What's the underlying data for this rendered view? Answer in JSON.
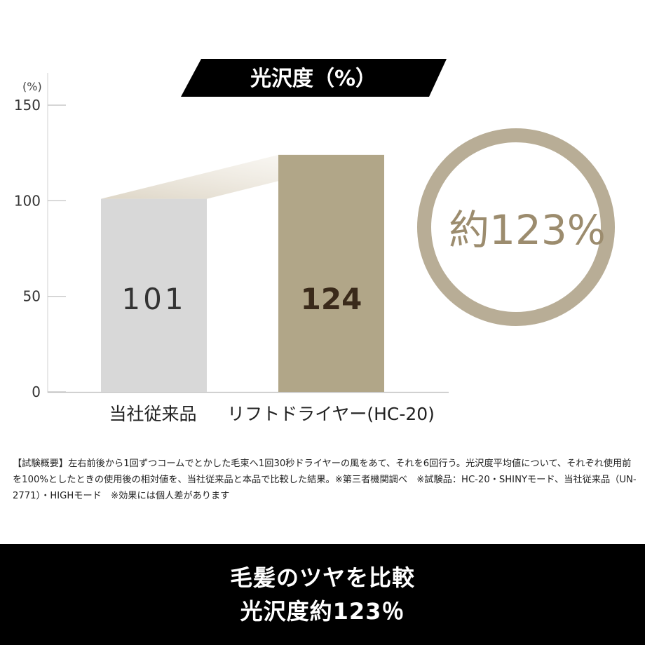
{
  "chart_data": {
    "type": "bar",
    "title": "光沢度（%）",
    "unit_label": "(%)",
    "categories": [
      "当社従来品",
      "リフトドライヤー(HC-20)"
    ],
    "values": [
      101,
      124
    ],
    "value_labels": [
      "101",
      "124"
    ],
    "ylim": [
      0,
      150
    ],
    "yticks": [
      "0",
      "50",
      "100",
      "150"
    ],
    "grid": false,
    "colors": [
      "#d8d8d8",
      "#b1a688"
    ],
    "label_colors": [
      "#333333",
      "#3a2a1a"
    ],
    "highlight_text": "約123%",
    "highlight_color": "#b8ad96"
  },
  "note": "【試験概要】左右前後から1回ずつコームでとかした毛束へ1回30秒ドライヤーの風をあて、それを6回行う。光沢度平均値について、それぞれ使用前を100%としたときの使用後の相対値を、当社従来品と本品で比較した結果。※第三者機関調べ　※試験品：HC-20・SHINYモード、当社従来品（UN-2771）・HIGHモード　※効果には個人差があります",
  "footer": {
    "line1": "毛髪のツヤを比較",
    "line2": "光沢度約123％"
  }
}
